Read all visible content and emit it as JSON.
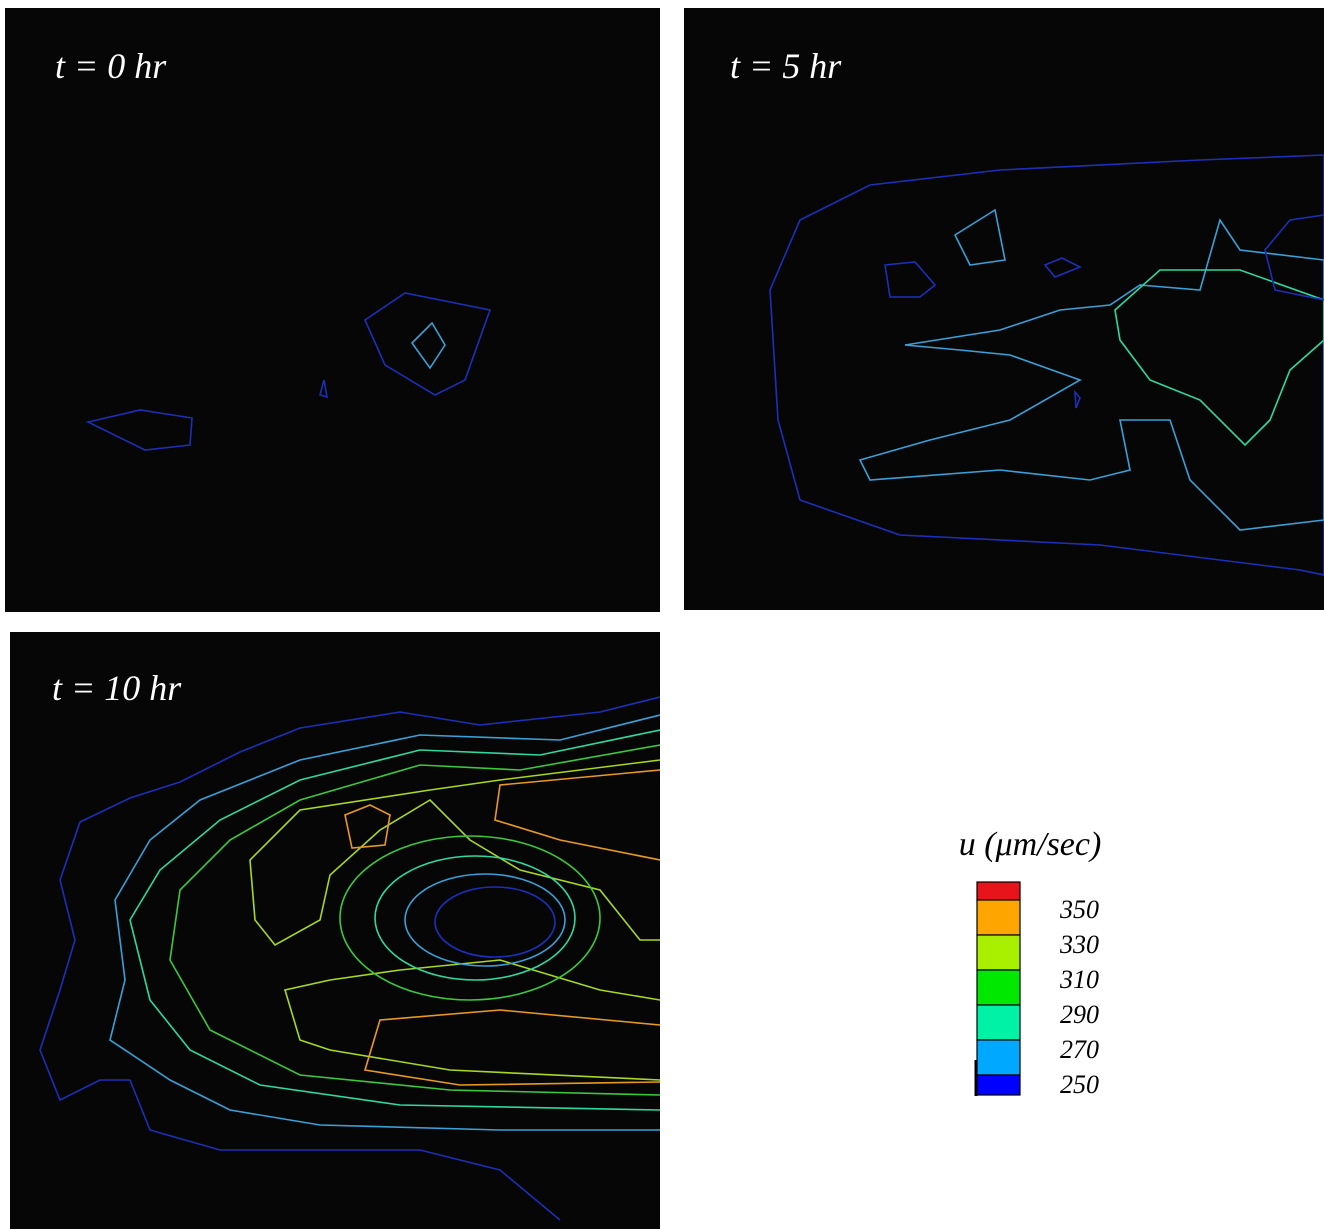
{
  "panels": [
    {
      "label": "t = 0 hr"
    },
    {
      "label": "t = 5 hr"
    },
    {
      "label": "t = 10 hr"
    }
  ],
  "legend": {
    "title": "u (μm/sec)",
    "colors": [
      "#e8141c",
      "#ffa500",
      "#a8f000",
      "#00e800",
      "#00f2a6",
      "#00a8ff",
      "#0000ff"
    ],
    "ticks": [
      350,
      330,
      310,
      290,
      270,
      250
    ]
  }
}
